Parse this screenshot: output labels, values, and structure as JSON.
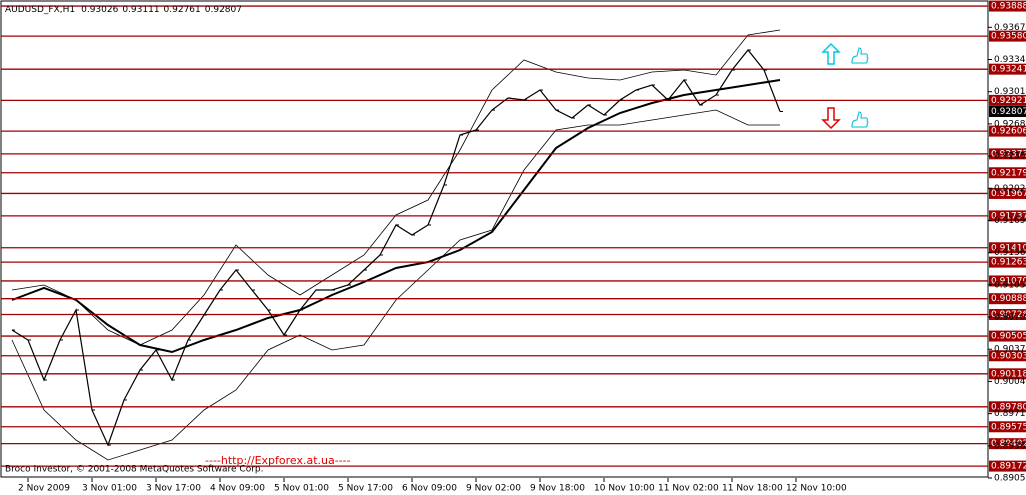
{
  "chart_data": {
    "type": "line",
    "symbol": "AUDUSD_FX,H1",
    "ohlc": [
      0.93026,
      0.93111,
      0.92761,
      0.92807
    ],
    "copyright": "Broco Investor, © 2001-2008 MetaQuotes Software Corp.",
    "watermark": "----http://Expforex.at.ua----",
    "categories": [
      null,
      "2 Nov 2009",
      null,
      null,
      null,
      "3 Nov 01:00",
      null,
      null,
      null,
      "3 Nov 17:00",
      null,
      null,
      null,
      "4 Nov 09:00",
      null,
      null,
      null,
      "5 Nov 01:00",
      null,
      null,
      null,
      "5 Nov 17:00",
      null,
      null,
      null,
      "6 Nov 09:00",
      null,
      null,
      null,
      "9 Nov 02:00",
      null,
      null,
      null,
      "9 Nov 18:00",
      null,
      null,
      null,
      "10 Nov 10:00",
      null,
      null,
      null,
      "11 Nov 02:00",
      null,
      null,
      null,
      "11 Nov 18:00",
      null,
      null,
      null,
      "12 Nov 10:00"
    ],
    "series": [
      {
        "color": "#000000",
        "values": [
          0.90567,
          0.90465,
          0.90055,
          0.90465,
          0.90772,
          0.89747,
          0.89388,
          0.8985,
          0.90157,
          0.90362,
          0.90055,
          0.90465,
          0.90721,
          0.90977,
          0.91182,
          0.90977,
          0.90772,
          0.90516,
          0.90772,
          0.90977,
          0.90977,
          0.91028,
          0.91182,
          0.91336,
          0.91644,
          0.91541,
          0.91644,
          0.92054,
          0.92566,
          0.92617,
          0.92822,
          0.92945,
          0.92925,
          0.93027,
          0.92822,
          0.9274,
          0.92874,
          0.92771,
          0.92925,
          0.93027,
          0.93079,
          0.92925,
          0.9313,
          0.92874,
          0.92976,
          0.93232,
          0.93437,
          0.93232,
          0.92807,
          null
        ]
      }
    ],
    "indicator_x": [
      0,
      2,
      4,
      6,
      8,
      10,
      12,
      14,
      16,
      18,
      20,
      22,
      24,
      26,
      28,
      30,
      32,
      34,
      36,
      38,
      40,
      42,
      44,
      46,
      48
    ],
    "ma": [
      0.90875,
      0.90998,
      0.90875,
      0.90618,
      0.90413,
      0.90342,
      0.90465,
      0.90567,
      0.9069,
      0.90772,
      0.90926,
      0.91059,
      0.91203,
      0.91264,
      0.91387,
      0.91572,
      0.92002,
      0.92433,
      0.92638,
      0.92792,
      0.92894,
      0.92976,
      0.93027,
      0.93079,
      0.9313
    ],
    "band_upper": [
      0.90977,
      0.91028,
      0.90875,
      0.90567,
      0.90413,
      0.90567,
      0.90926,
      0.91439,
      0.91131,
      0.90926,
      0.91131,
      0.91336,
      0.91746,
      0.919,
      0.92412,
      0.93027,
      0.93335,
      0.93212,
      0.9315,
      0.9313,
      0.93212,
      0.93232,
      0.93181,
      0.93591,
      0.93642
    ],
    "band_lower": [
      0.90465,
      0.89747,
      0.8944,
      0.89235,
      0.89337,
      0.8944,
      0.89747,
      0.89952,
      0.90362,
      0.90516,
      0.90362,
      0.90413,
      0.90875,
      0.91182,
      0.9149,
      0.91592,
      0.92207,
      0.92617,
      0.92669,
      0.92669,
      0.9272,
      0.92771,
      0.92822,
      0.92669,
      0.92669
    ],
    "ylim": [
      0.8905,
      0.9395
    ],
    "yticks": [
      {
        "value": 0.9367,
        "label": "0.93670"
      },
      {
        "value": 0.9334,
        "label": "0.93340"
      },
      {
        "value": 0.9301,
        "label": "0.93010"
      },
      {
        "value": 0.9268,
        "label": "0.92680"
      },
      {
        "value": 0.9235,
        "label": "0.92350"
      },
      {
        "value": 0.9202,
        "label": "0.92020"
      },
      {
        "value": 0.9169,
        "label": "0.91690"
      },
      {
        "value": 0.9136,
        "label": "0.91360"
      },
      {
        "value": 0.9103,
        "label": "0.91030"
      },
      {
        "value": 0.907,
        "label": "0.90700"
      },
      {
        "value": 0.9037,
        "label": "0.90370"
      },
      {
        "value": 0.9004,
        "label": "0.90040"
      },
      {
        "value": 0.8971,
        "label": "0.89710"
      },
      {
        "value": 0.8938,
        "label": "0.89380"
      },
      {
        "value": 0.8905,
        "label": "0.89050"
      }
    ],
    "current": {
      "value": 0.92807,
      "label": "0.92807"
    },
    "level_color": "#a00000",
    "levels": [
      {
        "value": 0.93888,
        "label": "0.93888"
      },
      {
        "value": 0.9358,
        "label": "0.93580"
      },
      {
        "value": 0.93241,
        "label": "0.93241"
      },
      {
        "value": 0.92921,
        "label": "0.92921"
      },
      {
        "value": 0.92606,
        "label": "0.92606"
      },
      {
        "value": 0.92373,
        "label": "0.92373"
      },
      {
        "value": 0.92179,
        "label": "0.92179"
      },
      {
        "value": 0.91967,
        "label": "0.91967"
      },
      {
        "value": 0.91737,
        "label": "0.91737"
      },
      {
        "value": 0.9141,
        "label": "0.91410"
      },
      {
        "value": 0.91263,
        "label": "0.91263"
      },
      {
        "value": 0.9107,
        "label": "0.91070"
      },
      {
        "value": 0.90888,
        "label": "0.90888"
      },
      {
        "value": 0.90726,
        "label": "0.90726"
      },
      {
        "value": 0.90505,
        "label": "0.90505"
      },
      {
        "value": 0.90303,
        "label": "0.90303"
      },
      {
        "value": 0.90118,
        "label": "0.90118"
      },
      {
        "value": 0.8978,
        "label": "0.89780"
      },
      {
        "value": 0.89575,
        "label": "0.89575"
      },
      {
        "value": 0.89402,
        "label": "0.89402"
      },
      {
        "value": 0.89172,
        "label": "0.89172"
      }
    ]
  }
}
